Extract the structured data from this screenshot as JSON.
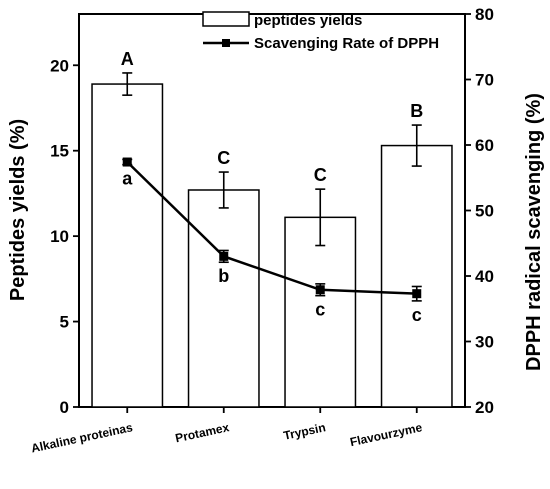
{
  "chart_data": {
    "type": "bar",
    "categories": [
      "Alkaline proteinas",
      "Protamex",
      "Trypsin",
      "Flavourzyme"
    ],
    "series": [
      {
        "name": "peptides yields",
        "type": "bar",
        "axis": "left",
        "values": [
          18.9,
          12.7,
          11.1,
          15.3
        ],
        "errors": [
          0.65,
          1.05,
          1.65,
          1.2
        ],
        "labels": [
          "A",
          "C",
          "C",
          "B"
        ],
        "color": "#ffffff",
        "stroke": "#000000"
      },
      {
        "name": "Scavenging Rate of DPPH",
        "type": "line",
        "axis": "right",
        "values": [
          57.4,
          43.0,
          37.9,
          37.3
        ],
        "errors": [
          0.4,
          0.9,
          0.9,
          1.1
        ],
        "labels": [
          "a",
          "b",
          "c",
          "c"
        ],
        "color": "#000000"
      }
    ],
    "ylabel": "Peptides yields (%)",
    "ylim": [
      0,
      23
    ],
    "yticks": [
      0,
      5,
      10,
      15,
      20
    ],
    "y2label": "DPPH radical scavenging (%)",
    "y2lim": [
      20,
      80
    ],
    "y2ticks": [
      20,
      30,
      40,
      50,
      60,
      70,
      80
    ],
    "legend": "top-right",
    "grid": false
  }
}
